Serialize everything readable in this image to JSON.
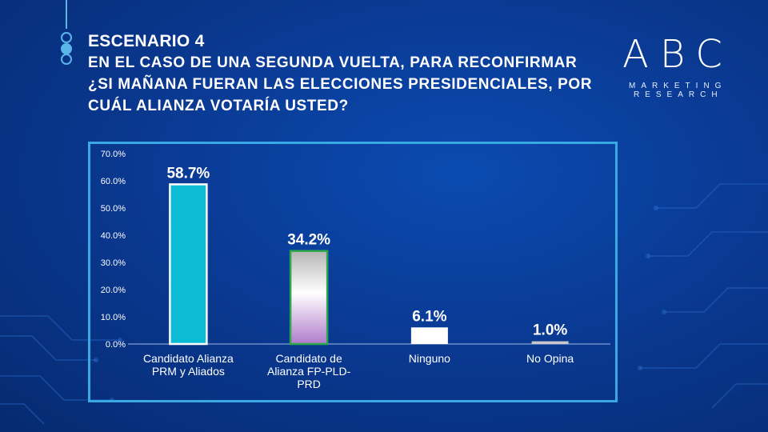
{
  "heading": {
    "scenario": "ESCENARIO 4",
    "question": "EN EL CASO DE UNA SEGUNDA VUELTA, PARA RECONFIRMAR ¿SI MAÑANA FUERAN LAS ELECCIONES PRESIDENCIALES,  POR CUÁL ALIANZA VOTARÍA USTED?"
  },
  "logo": {
    "mark": "ABC",
    "line1": "MARKETING",
    "line2": "RESEARCH"
  },
  "colors": {
    "accent": "#39a9e6",
    "bar1": "#0cbcd4",
    "bar2_border": "#2ea84a",
    "bar2_fill_top": "#b5b5b5",
    "bar2_fill_bottom": "#b07ccc",
    "bar3": "#ffffff",
    "bar4": "#c8c8c8"
  },
  "chart_data": {
    "type": "bar",
    "categories": [
      [
        "Candidato Alianza",
        "PRM y Aliados"
      ],
      [
        "Candidato de",
        "Alianza FP-PLD-",
        "PRD"
      ],
      [
        "Ninguno"
      ],
      [
        "No Opina"
      ]
    ],
    "values": [
      58.7,
      34.2,
      6.1,
      1.0
    ],
    "value_labels": [
      "58.7%",
      "34.2%",
      "6.1%",
      "1.0%"
    ],
    "yticks": [
      "0.0%",
      "10.0%",
      "20.0%",
      "30.0%",
      "40.0%",
      "50.0%",
      "60.0%",
      "70.0%"
    ],
    "ylim": [
      0,
      70
    ],
    "grid": false
  }
}
